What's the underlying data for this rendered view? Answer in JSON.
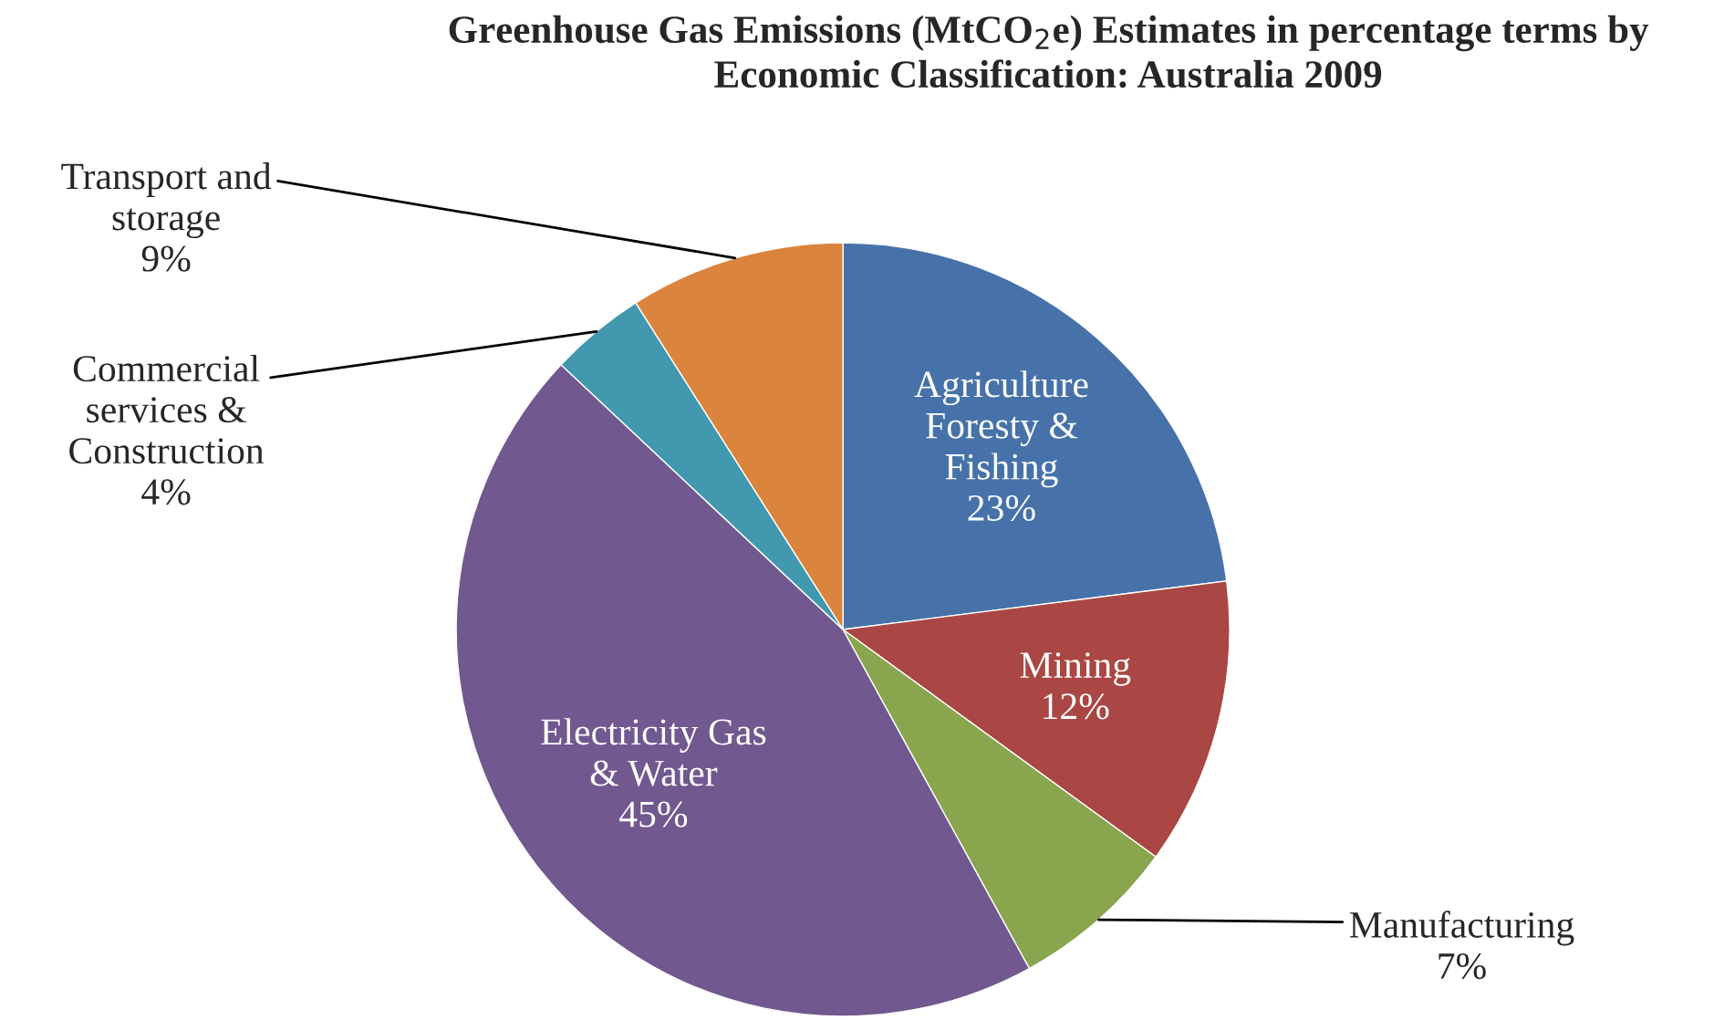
{
  "chart_data": {
    "type": "pie",
    "title": "Greenhouse Gas Emissions (MtCO$_{2}$e) Estimates in percentage terms by Economic Classification: Australia 2009",
    "categories": [
      "Agriculture\nForesty &\nFishing",
      "Mining",
      "Manufacturing",
      "Electricity Gas\n& Water",
      "Commercial\nservices &\nConstruction",
      "Transport and\nstorage"
    ],
    "values": [
      23,
      12,
      7,
      45,
      4,
      9
    ],
    "colors": [
      "#4672a9",
      "#aa4643",
      "#89a54e",
      "#71588f",
      "#4198af",
      "#db843d"
    ],
    "value_labels": [
      "23%",
      "12%",
      "7%",
      "45%",
      "4%",
      "9%"
    ]
  }
}
